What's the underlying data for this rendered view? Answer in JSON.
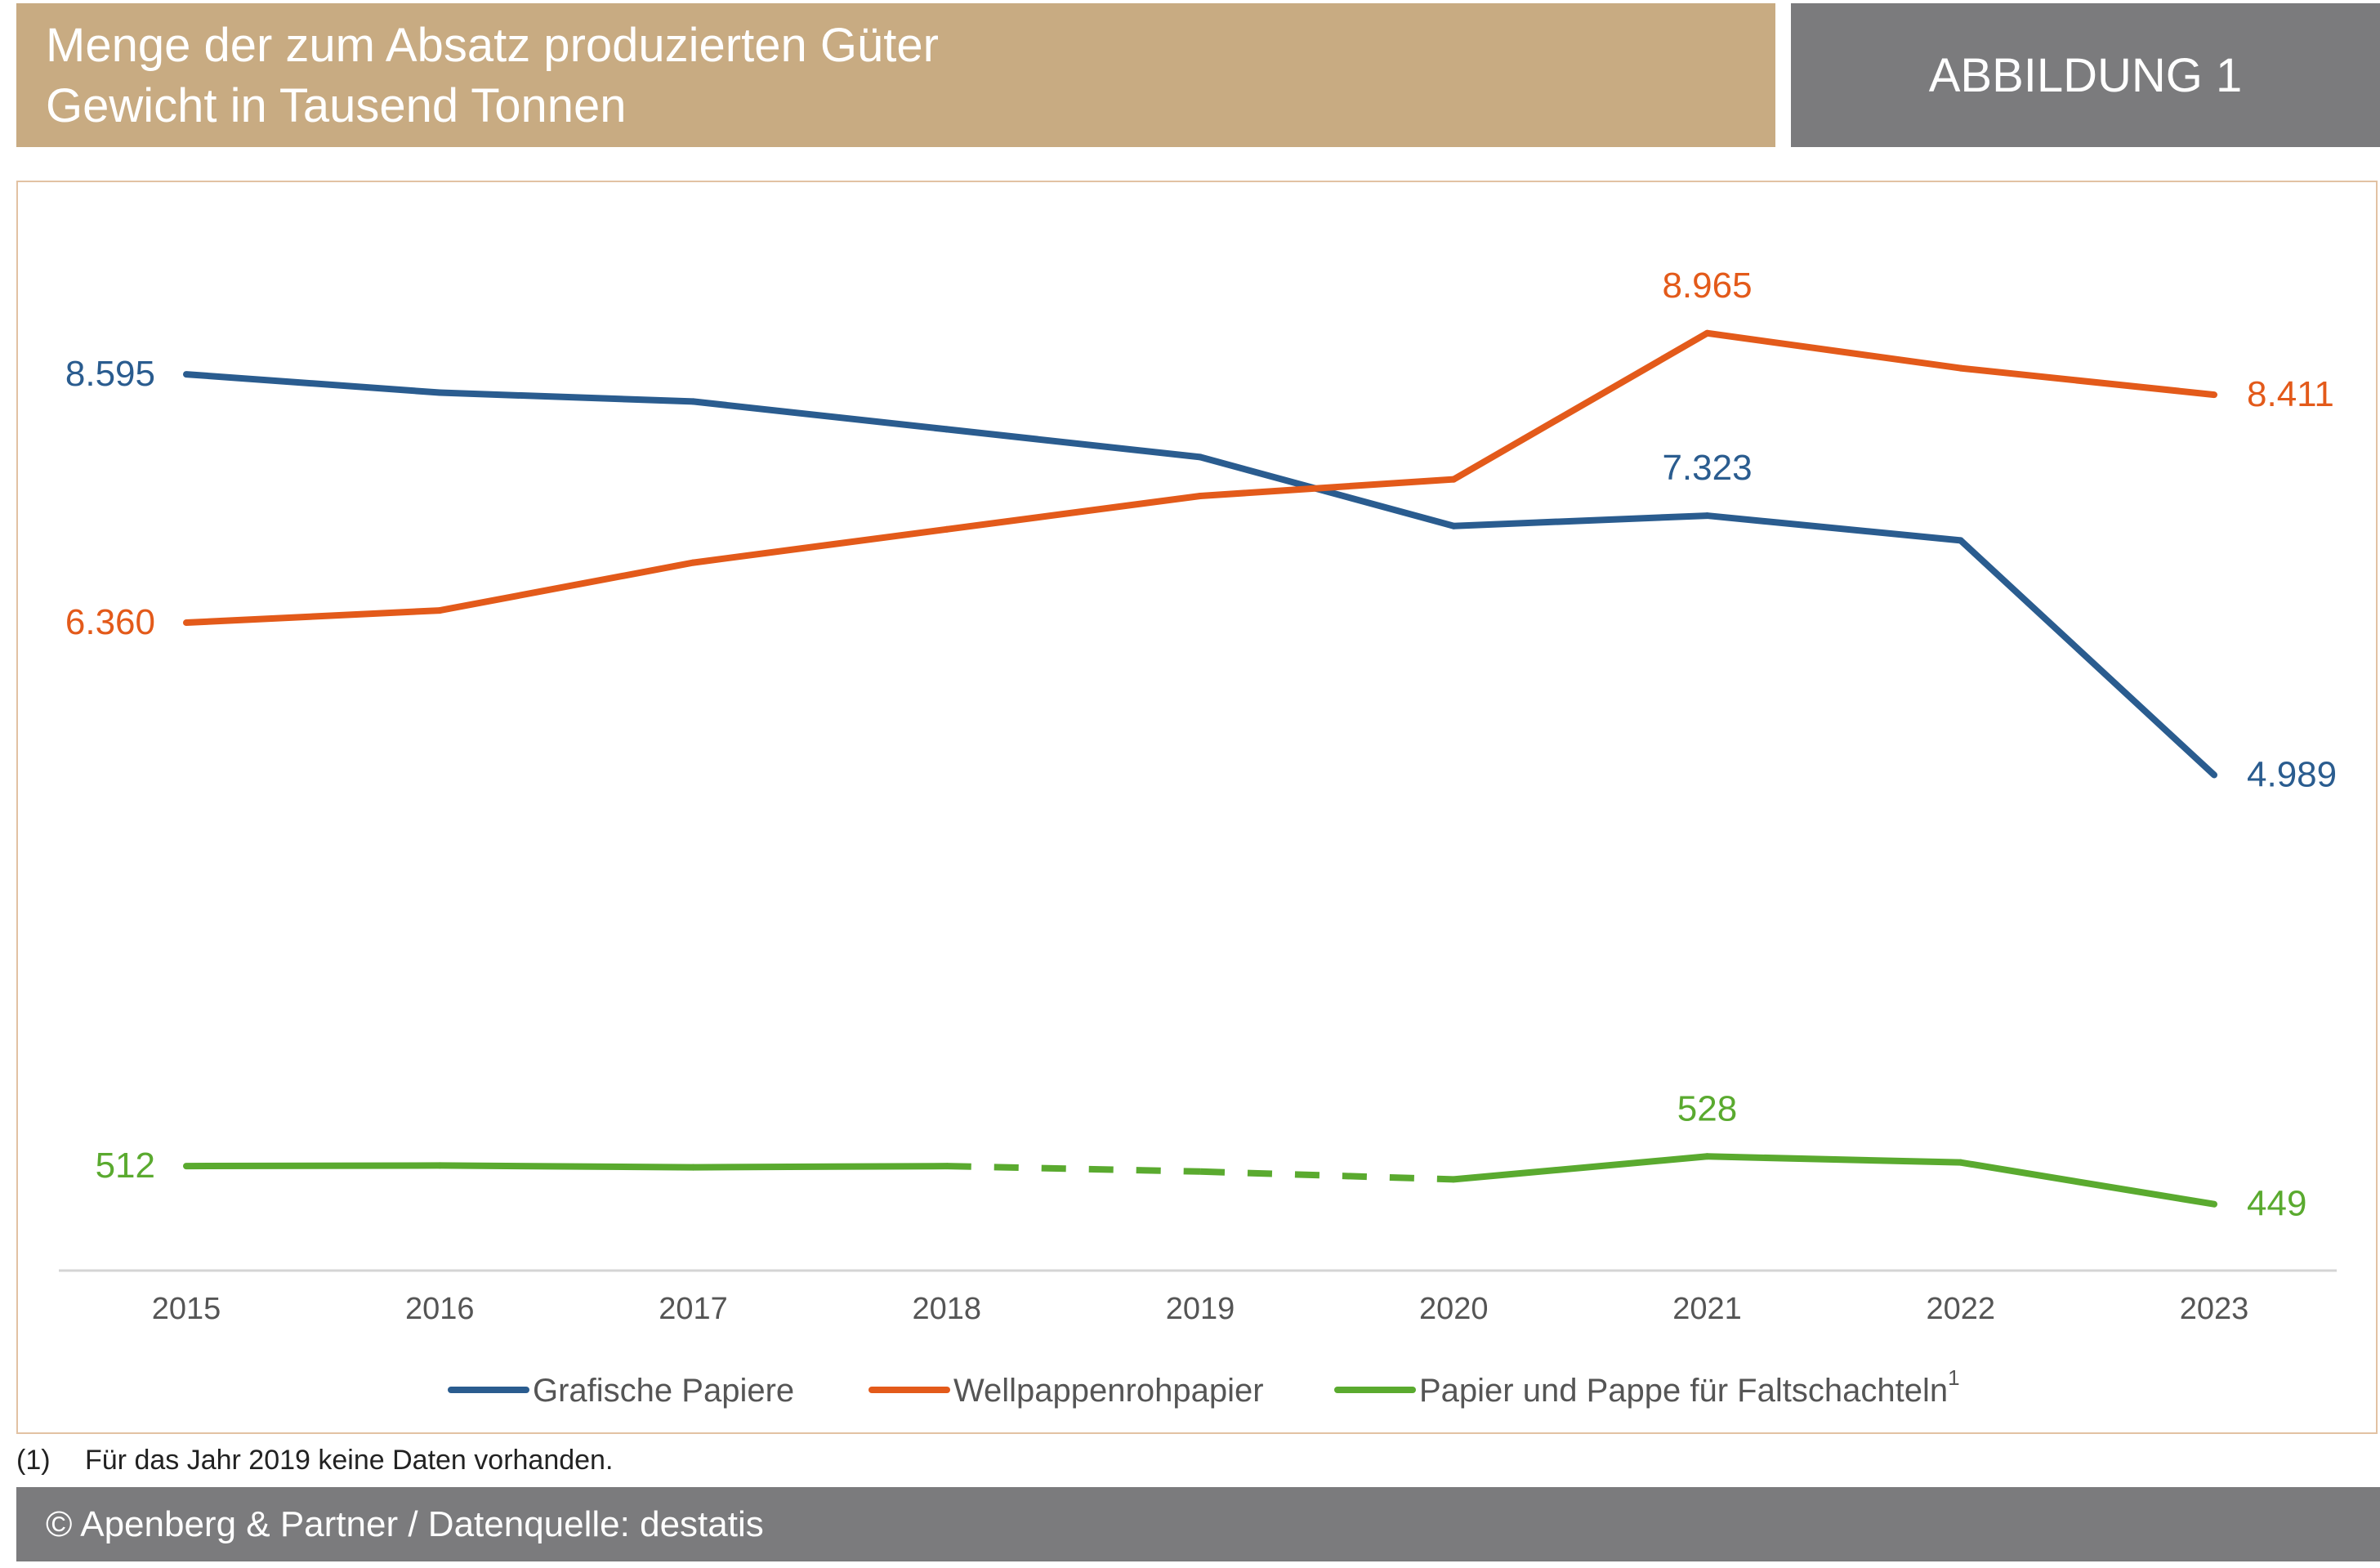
{
  "header": {
    "title": "Menge der zum Absatz produzierten Güter",
    "subtitle": "Gewicht in Tausend Tonnen",
    "badge": "ABBILDUNG 1"
  },
  "chart_data": {
    "type": "line",
    "title": "Menge der zum Absatz produzierten Güter",
    "subtitle": "Gewicht in Tausend Tonnen",
    "xlabel": "",
    "ylabel": "",
    "ylim": [
      0,
      10000
    ],
    "grid": false,
    "legend_position": "bottom",
    "categories": [
      "2015",
      "2016",
      "2017",
      "2018",
      "2019",
      "2020",
      "2021",
      "2022",
      "2023"
    ],
    "series": [
      {
        "name": "Grafische Papiere",
        "color": "#2a5c8f",
        "values": [
          8595,
          8430,
          8350,
          8100,
          7850,
          7230,
          7323,
          7100,
          4989
        ],
        "labels": [
          {
            "index": 0,
            "text": "8.595",
            "pos": "left"
          },
          {
            "index": 6,
            "text": "7.323",
            "pos": "above"
          },
          {
            "index": 8,
            "text": "4.989",
            "pos": "right"
          }
        ]
      },
      {
        "name": "Wellpappenrohpapier",
        "color": "#e35a1a",
        "values": [
          6360,
          6470,
          6900,
          7200,
          7500,
          7650,
          8965,
          8650,
          8411
        ],
        "labels": [
          {
            "index": 0,
            "text": "6.360",
            "pos": "left"
          },
          {
            "index": 6,
            "text": "8.965",
            "pos": "above"
          },
          {
            "index": 8,
            "text": "8.411",
            "pos": "right"
          }
        ]
      },
      {
        "name": "Papier und Pappe für Faltschachteln",
        "legend_sup": "1",
        "color": "#5aaa2f",
        "values": [
          512,
          513,
          510,
          512,
          503,
          490,
          528,
          518,
          449
        ],
        "dashed_segments": [
          3,
          4
        ],
        "labels": [
          {
            "index": 0,
            "text": "512",
            "pos": "left"
          },
          {
            "index": 6,
            "text": "528",
            "pos": "above"
          },
          {
            "index": 8,
            "text": "449",
            "pos": "right"
          }
        ]
      }
    ]
  },
  "footnote": {
    "mark": "(1)",
    "text": "Für das Jahr 2019 keine Daten vorhanden."
  },
  "footer": {
    "text": "© Apenberg & Partner / Datenquelle: destatis"
  }
}
